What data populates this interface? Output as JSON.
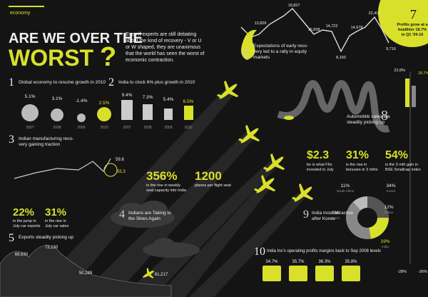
{
  "header": {
    "section": "economy",
    "title_lines": [
      "ARE WE OVER THE",
      "WORST"
    ],
    "question_mark": "?",
    "intro_lines": [
      "Even if experts are still debating",
      "about the kind of recovery - V or U",
      "or W shaped, they are  unanimous",
      "that the world has seen the worst of",
      "economic contraction."
    ]
  },
  "s1": {
    "num": "1",
    "title": "Global economy to resume growth in 2010",
    "values": [
      "5.1%",
      "3.1%",
      "-1.4%",
      "2.5%"
    ],
    "years": [
      "2007",
      "2008",
      "2009",
      "2010"
    ]
  },
  "s2": {
    "num": "2",
    "title": "India to clock 6% plus growth in 2010",
    "values": [
      "9.4%",
      "7.3%",
      "5.4%",
      "6.5%"
    ],
    "years": [
      "2007",
      "2008",
      "2009",
      "2010"
    ]
  },
  "s3": {
    "num": "3",
    "title_lines": [
      "Indian manufacturing reco-",
      "very gaining traction"
    ],
    "values": [
      "59.8",
      "55.3"
    ]
  },
  "s4": {
    "num": "4",
    "title_lines": [
      "Indians are Taking to",
      "the Skies Again"
    ],
    "stats": [
      {
        "value": "356%",
        "label_lines": [
          "in the rise in weekly",
          "seat capacity into India"
        ]
      },
      {
        "value": "1200",
        "label_lines": [
          "planes per flight seat"
        ]
      }
    ],
    "car_stats": [
      {
        "value": "22%",
        "label_lines": [
          "in the jump in",
          "July car exports"
        ]
      },
      {
        "value": "31%",
        "label_lines": [
          "in the rise in",
          "July car sales"
        ]
      }
    ]
  },
  "s5": {
    "num": "5",
    "title": "Exports steadily picking up",
    "values": [
      "69,630",
      "73,130",
      "50,289",
      "61,217"
    ]
  },
  "s6": {
    "num": "6",
    "title_lines": [
      "Expectations of early reco-",
      "very led to a rally in equity",
      "markets"
    ],
    "values": [
      "13,828",
      "19,827",
      "15,838",
      "8,160",
      "14,722",
      "14,678",
      "22,412",
      "9,716"
    ]
  },
  "s7": {
    "num": "7",
    "title_lines": [
      "Profits grow at a",
      "healthier 18.7%",
      "in Q1 '09-10"
    ],
    "bars": [
      "22.8%",
      "18.7%",
      "-28%",
      "-26%"
    ]
  },
  "s8": {
    "num": "8",
    "title_lines": [
      "Automobile sales are",
      "steadily picking up"
    ],
    "stats": [
      {
        "value": "$2.3",
        "label_lines": [
          "bn is what FIIs",
          "invested in July"
        ]
      },
      {
        "value": "31%",
        "label_lines": [
          "is the rise in",
          "bonuses in 3 mths"
        ]
      },
      {
        "value": "54%",
        "label_lines": [
          "is the 3 mth gain in",
          "BSE Smallcap index"
        ]
      }
    ]
  },
  "s9": {
    "num": "9",
    "title_lines": [
      "India most attractive",
      "after Korea"
    ],
    "slices": [
      {
        "value": "11%",
        "label": "South Africa"
      },
      {
        "value": "34%",
        "label": "Korea"
      },
      {
        "value": "12%",
        "label": "China"
      },
      {
        "value": "19%",
        "label": "India"
      },
      {
        "value": "9%",
        "label": "Brazil"
      }
    ]
  },
  "s10": {
    "num": "10",
    "title_lines": [
      "India Inc's operating profits margins back to Sep 2008 levels"
    ],
    "values": [
      "34.7%",
      "35.7%",
      "36.3%",
      "35.8%"
    ]
  }
}
